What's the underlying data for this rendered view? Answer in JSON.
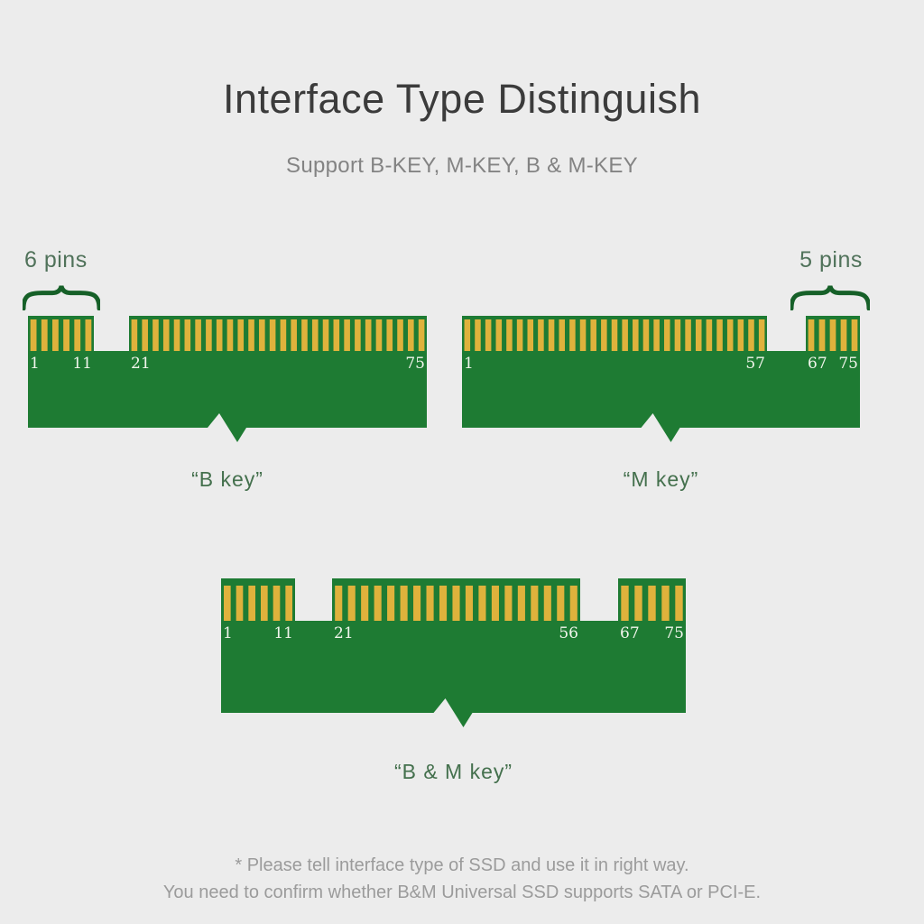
{
  "header": {
    "title": "Interface Type Distinguish",
    "subtitle": "Support B-KEY, M-KEY, B & M-KEY"
  },
  "colors": {
    "background": "#ececec",
    "pcb_green": "#1e7b33",
    "pin_gold": "#dfb23c",
    "brace_green": "#166028",
    "callout_green": "#50725a",
    "caption_green": "#44704d",
    "pin_number_color": "#f1f5ec"
  },
  "connectors": [
    {
      "id": "b-key",
      "caption": "“B key”",
      "pins_callout": {
        "text": "6 pins",
        "side": "left"
      },
      "groups": [
        {
          "pins": 6,
          "start_label": "1",
          "end_label": "11"
        },
        {
          "pins": 28,
          "start_label": "21",
          "end_label": "75"
        }
      ]
    },
    {
      "id": "m-key",
      "caption": "“M key”",
      "pins_callout": {
        "text": "5 pins",
        "side": "right"
      },
      "groups": [
        {
          "pins": 29,
          "start_label": "1",
          "end_label": "57"
        },
        {
          "pins": 5,
          "start_label": "67",
          "end_label": "75"
        }
      ]
    },
    {
      "id": "bm-key",
      "caption": "“B & M key”",
      "pins_callout": null,
      "groups": [
        {
          "pins": 6,
          "start_label": "1",
          "end_label": "11"
        },
        {
          "pins": 19,
          "start_label": "21",
          "end_label": "56"
        },
        {
          "pins": 5,
          "start_label": "67",
          "end_label": "75"
        }
      ]
    }
  ],
  "footer": {
    "line1": "* Please tell interface type of SSD and use it in right way.",
    "line2": "You need to confirm whether B&M Universal SSD supports SATA or PCI-E."
  }
}
